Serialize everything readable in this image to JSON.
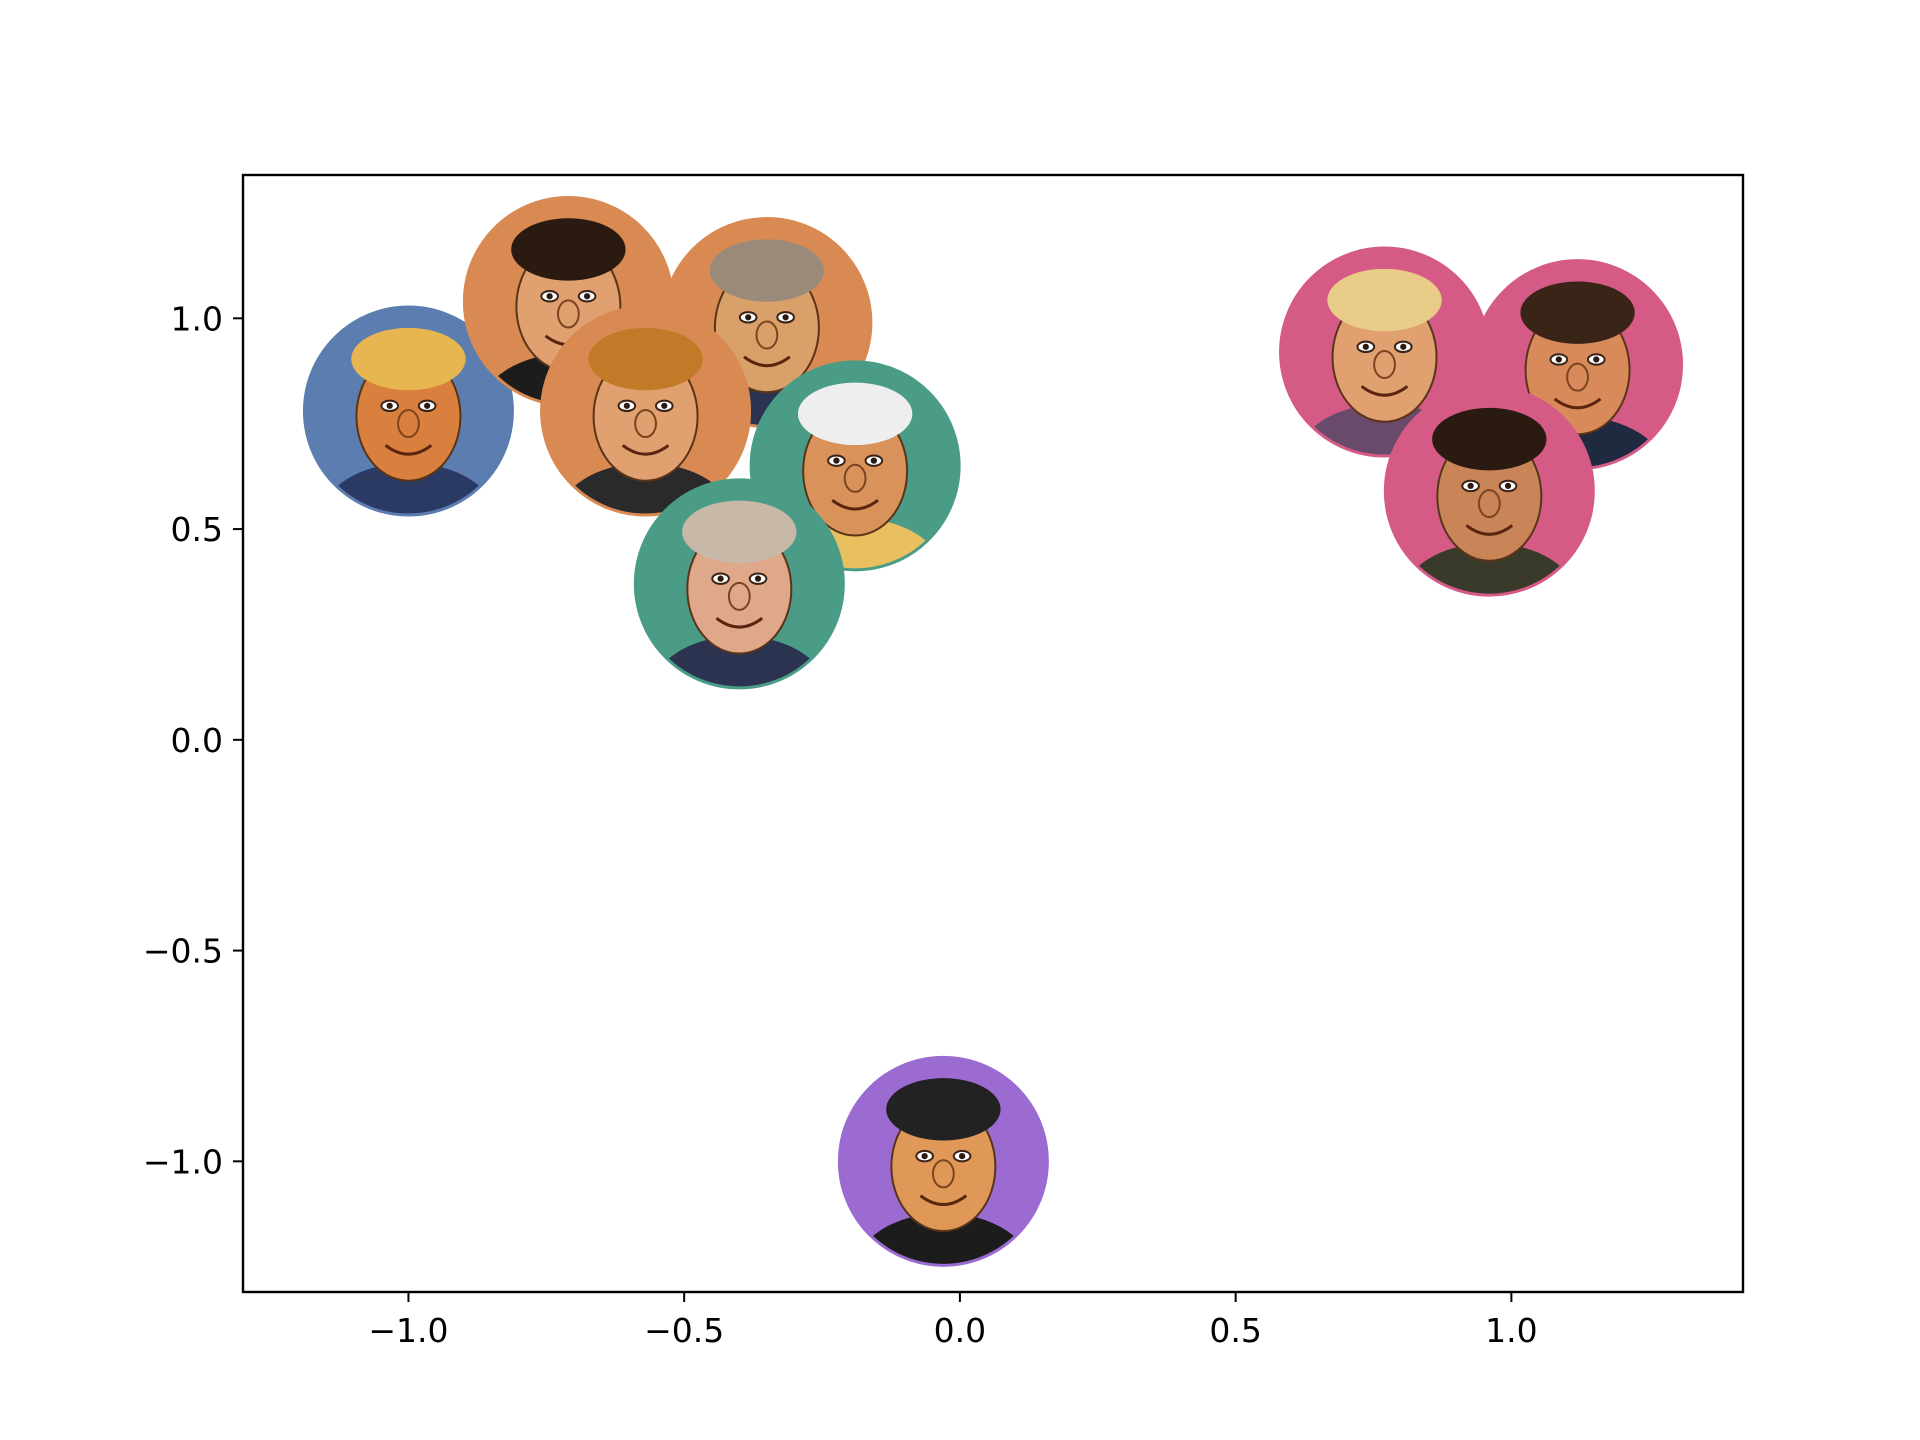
{
  "chart_data": {
    "type": "scatter",
    "title": "",
    "xlabel": "",
    "ylabel": "",
    "xlim": [
      -1.3,
      1.42
    ],
    "ylim": [
      -1.31,
      1.34
    ],
    "xticks": [
      {
        "value": -1.0,
        "label": "−1.0"
      },
      {
        "value": -0.5,
        "label": "−0.5"
      },
      {
        "value": 0.0,
        "label": "0.0"
      },
      {
        "value": 0.5,
        "label": "0.5"
      },
      {
        "value": 1.0,
        "label": "1.0"
      }
    ],
    "yticks": [
      {
        "value": 1.0,
        "label": "1.0"
      },
      {
        "value": 0.5,
        "label": "0.5"
      },
      {
        "value": 0.0,
        "label": "0.0"
      },
      {
        "value": -0.5,
        "label": "−0.5"
      },
      {
        "value": -1.0,
        "label": "−1.0"
      }
    ],
    "grid": false,
    "legend": "none",
    "marker_style": "circular caricature portrait with colored ring",
    "points": [
      {
        "x": -1.0,
        "y": 0.78,
        "color": "#5b7db0",
        "icon": "caricature-light-hair-suit-icon",
        "skin": "#d9803e",
        "hair": "#e8b650",
        "shirt": "#2b3a63"
      },
      {
        "x": -0.71,
        "y": 1.04,
        "color": "#d98a52",
        "icon": "caricature-dark-hair-grin-icon",
        "skin": "#e0a070",
        "hair": "#2a1a10",
        "shirt": "#1c1c1c"
      },
      {
        "x": -0.35,
        "y": 0.99,
        "color": "#d98a52",
        "icon": "caricature-grey-hair-suit-icon",
        "skin": "#d9a06a",
        "hair": "#9a8a7a",
        "shirt": "#2b3350"
      },
      {
        "x": -0.57,
        "y": 0.78,
        "color": "#d98a52",
        "icon": "caricature-long-blonde-hair-icon",
        "skin": "#e0a070",
        "hair": "#c27a28",
        "shirt": "#2a2a2a"
      },
      {
        "x": -0.19,
        "y": 0.65,
        "color": "#4a9c87",
        "icon": "caricature-white-beard-glasses-icon",
        "skin": "#d9935a",
        "hair": "#eeeeee",
        "shirt": "#e8c060"
      },
      {
        "x": -0.4,
        "y": 0.37,
        "color": "#4a9c87",
        "icon": "caricature-bald-suit-icon",
        "skin": "#e0a88a",
        "hair": "#c8b8a8",
        "shirt": "#2b3350"
      },
      {
        "x": 0.77,
        "y": 0.92,
        "color": "#d55a85",
        "icon": "caricature-blonde-curly-hair-icon",
        "skin": "#e0a070",
        "hair": "#e8cc88",
        "shirt": "#6a4a6a"
      },
      {
        "x": 1.12,
        "y": 0.89,
        "color": "#d55a85",
        "icon": "caricature-dark-short-hair-icon",
        "skin": "#d98a5a",
        "hair": "#3a2418",
        "shirt": "#1f2a40"
      },
      {
        "x": 0.96,
        "y": 0.59,
        "color": "#d55a85",
        "icon": "caricature-dark-hair-beard-icon",
        "skin": "#c98558",
        "hair": "#2a1a10",
        "shirt": "#3a3a2a"
      },
      {
        "x": -0.03,
        "y": -1.0,
        "color": "#9b6bd1",
        "icon": "caricature-black-hair-smile-icon",
        "skin": "#e09858",
        "hair": "#222222",
        "shirt": "#1c1c1c"
      }
    ]
  }
}
